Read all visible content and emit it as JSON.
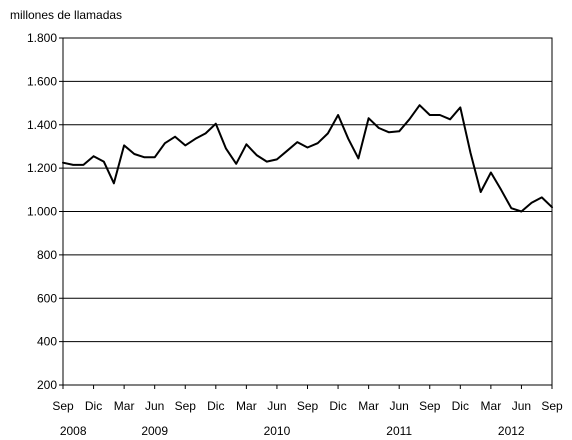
{
  "chart_data": {
    "type": "line",
    "title": "",
    "ylabel": "millones de llamadas",
    "xlabel": "",
    "ylim": [
      200,
      1800
    ],
    "yticks": [
      200,
      400,
      600,
      800,
      1000,
      1200,
      1400,
      1600,
      1800
    ],
    "ytick_labels": [
      "200",
      "400",
      "600",
      "800",
      "1.000",
      "1.200",
      "1.400",
      "1.600",
      "1.800"
    ],
    "grid": true,
    "legend": "none",
    "line_color": "#000000",
    "x_start": "2008-09",
    "x": [
      "2008-09",
      "2008-10",
      "2008-11",
      "2008-12",
      "2009-01",
      "2009-02",
      "2009-03",
      "2009-04",
      "2009-05",
      "2009-06",
      "2009-07",
      "2009-08",
      "2009-09",
      "2009-10",
      "2009-11",
      "2009-12",
      "2010-01",
      "2010-02",
      "2010-03",
      "2010-04",
      "2010-05",
      "2010-06",
      "2010-07",
      "2010-08",
      "2010-09",
      "2010-10",
      "2010-11",
      "2010-12",
      "2011-01",
      "2011-02",
      "2011-03",
      "2011-04",
      "2011-05",
      "2011-06",
      "2011-07",
      "2011-08",
      "2011-09",
      "2011-10",
      "2011-11",
      "2011-12",
      "2012-01",
      "2012-02",
      "2012-03",
      "2012-04",
      "2012-05",
      "2012-06",
      "2012-07",
      "2012-08",
      "2012-09"
    ],
    "x_tick_labels": [
      {
        "label": "Sep",
        "month": "2008-09"
      },
      {
        "label": "Dic",
        "month": "2008-12"
      },
      {
        "label": "Mar",
        "month": "2009-03"
      },
      {
        "label": "Jun",
        "month": "2009-06"
      },
      {
        "label": "Sep",
        "month": "2009-09"
      },
      {
        "label": "Dic",
        "month": "2009-12"
      },
      {
        "label": "Mar",
        "month": "2010-03"
      },
      {
        "label": "Jun",
        "month": "2010-06"
      },
      {
        "label": "Sep",
        "month": "2010-09"
      },
      {
        "label": "Dic",
        "month": "2010-12"
      },
      {
        "label": "Mar",
        "month": "2011-03"
      },
      {
        "label": "Jun",
        "month": "2011-06"
      },
      {
        "label": "Sep",
        "month": "2011-09"
      },
      {
        "label": "Dic",
        "month": "2011-12"
      },
      {
        "label": "Mar",
        "month": "2012-03"
      },
      {
        "label": "Jun",
        "month": "2012-06"
      },
      {
        "label": "Sep",
        "month": "2012-09"
      }
    ],
    "year_labels": [
      {
        "label": "2008",
        "month": "2008-10"
      },
      {
        "label": "2009",
        "month": "2009-06"
      },
      {
        "label": "2010",
        "month": "2010-06"
      },
      {
        "label": "2011",
        "month": "2011-06"
      },
      {
        "label": "2012",
        "month": "2012-05"
      }
    ],
    "series": [
      {
        "values": [
          1225,
          1215,
          1215,
          1255,
          1230,
          1130,
          1305,
          1265,
          1250,
          1250,
          1315,
          1345,
          1305,
          1335,
          1360,
          1405,
          1290,
          1220,
          1310,
          1260,
          1230,
          1240,
          1280,
          1320,
          1295,
          1315,
          1360,
          1445,
          1335,
          1245,
          1430,
          1385,
          1365,
          1370,
          1425,
          1490,
          1445,
          1445,
          1425,
          1480,
          1270,
          1090,
          1180,
          1100,
          1015,
          1000,
          1040,
          1065,
          1020
        ]
      }
    ]
  }
}
